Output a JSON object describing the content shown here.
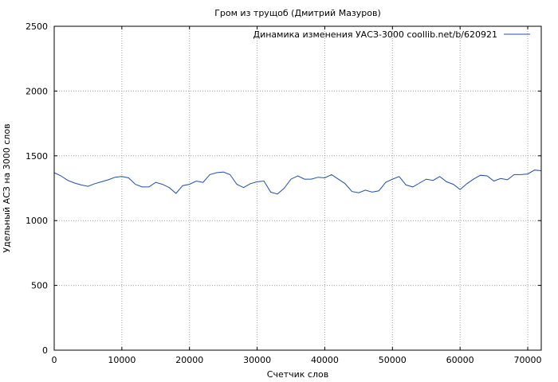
{
  "chart_data": {
    "type": "line",
    "title": "Гром из трущоб (Дмитрий Мазуров)",
    "xlabel": "Счетчик слов",
    "ylabel": "Удельный АСЗ на 3000 слов",
    "xlim": [
      0,
      72000
    ],
    "ylim": [
      0,
      2500
    ],
    "xticks": [
      0,
      10000,
      20000,
      30000,
      40000,
      50000,
      60000,
      70000
    ],
    "yticks": [
      0,
      500,
      1000,
      1500,
      2000,
      2500
    ],
    "grid": true,
    "legend_position": "top-right",
    "series": [
      {
        "name": "Динамика изменения УАСЗ-3000 coollib.net/b/620921",
        "color": "#1f4fa8",
        "x": [
          0,
          1000,
          2000,
          3000,
          4000,
          5000,
          6000,
          7000,
          8000,
          9000,
          10000,
          11000,
          12000,
          13000,
          14000,
          15000,
          16000,
          17000,
          18000,
          19000,
          20000,
          21000,
          22000,
          23000,
          24000,
          25000,
          26000,
          27000,
          28000,
          29000,
          30000,
          31000,
          32000,
          33000,
          34000,
          35000,
          36000,
          37000,
          38000,
          39000,
          40000,
          41000,
          42000,
          43000,
          44000,
          45000,
          46000,
          47000,
          48000,
          49000,
          50000,
          51000,
          52000,
          53000,
          54000,
          55000,
          56000,
          57000,
          58000,
          59000,
          60000,
          61000,
          62000,
          63000,
          64000,
          65000,
          66000,
          67000,
          68000,
          69000,
          70000,
          71000,
          72000
        ],
        "y": [
          1370,
          1345,
          1310,
          1290,
          1275,
          1265,
          1285,
          1300,
          1315,
          1335,
          1340,
          1330,
          1280,
          1260,
          1260,
          1295,
          1280,
          1255,
          1210,
          1270,
          1280,
          1305,
          1295,
          1355,
          1370,
          1375,
          1355,
          1280,
          1255,
          1285,
          1300,
          1305,
          1220,
          1205,
          1250,
          1320,
          1345,
          1320,
          1320,
          1335,
          1330,
          1355,
          1320,
          1285,
          1225,
          1215,
          1235,
          1220,
          1230,
          1295,
          1320,
          1340,
          1275,
          1260,
          1290,
          1320,
          1310,
          1340,
          1300,
          1280,
          1240,
          1285,
          1320,
          1350,
          1345,
          1305,
          1325,
          1315,
          1355,
          1355,
          1360,
          1390,
          1385
        ]
      }
    ]
  }
}
